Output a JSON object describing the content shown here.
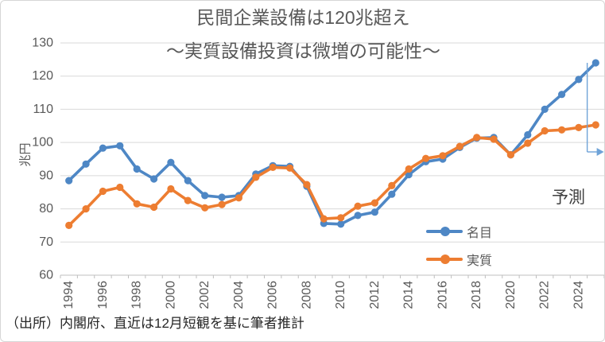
{
  "title": {
    "line1": "民間企業設備は120兆超え",
    "line2": "～実質設備投資は微増の可能性～"
  },
  "source_note": "（出所）内閣府、直近は12月短観を基に筆者推計",
  "forecast_label": "予測",
  "y_axis": {
    "unit_label": "兆円",
    "min": 60,
    "max": 130,
    "step": 10,
    "ticks": [
      60,
      70,
      80,
      90,
      100,
      110,
      120,
      130
    ]
  },
  "x_axis": {
    "label_interval": 2,
    "labels": [
      "1994",
      "1996",
      "1998",
      "2000",
      "2002",
      "2004",
      "2006",
      "2008",
      "2010",
      "2012",
      "2014",
      "2016",
      "2018",
      "2020",
      "2022",
      "2024"
    ]
  },
  "colors": {
    "nominal_blue": "#4E87C5",
    "real_orange": "#ED7D31",
    "forecast_arrow": "#6FA3D8",
    "gridline": "#D9D9D9",
    "axis": "#BFBFBF",
    "tick_text": "#595959",
    "title_text": "#595959"
  },
  "chart_data": {
    "type": "line",
    "title": "民間企業設備は120兆超え ～実質設備投資は微増の可能性～",
    "ylabel": "兆円",
    "ylim": [
      60,
      130
    ],
    "grid": true,
    "legend_position": "inside-right-bottom",
    "x": [
      1994,
      1995,
      1996,
      1997,
      1998,
      1999,
      2000,
      2001,
      2002,
      2003,
      2004,
      2005,
      2006,
      2007,
      2008,
      2009,
      2010,
      2011,
      2012,
      2013,
      2014,
      2015,
      2016,
      2017,
      2018,
      2019,
      2020,
      2021,
      2022,
      2023,
      2024,
      2025
    ],
    "series": [
      {
        "id": "nominal",
        "name": "名目",
        "color": "#4E87C5",
        "values": [
          88.5,
          93.5,
          98.3,
          99,
          92,
          89,
          94,
          88.5,
          84,
          83.5,
          84,
          90.5,
          93,
          92.8,
          86.8,
          75.6,
          75.4,
          78,
          79,
          84.4,
          90.3,
          94.2,
          95,
          98.5,
          101.3,
          101.5,
          96.3,
          102.3,
          110,
          114.5,
          119,
          124
        ]
      },
      {
        "id": "real",
        "name": "実質",
        "color": "#ED7D31",
        "values": [
          75,
          80,
          85.3,
          86.5,
          81.5,
          80.5,
          86,
          82.5,
          80.3,
          81.3,
          83.3,
          89.5,
          92.5,
          92.3,
          87.3,
          77,
          77.3,
          80.8,
          81.8,
          87,
          92,
          95.2,
          96,
          98.8,
          101.5,
          101,
          96.3,
          99.8,
          103.5,
          103.8,
          104.5,
          105.3
        ]
      }
    ],
    "annotations": {
      "forecast_text": "予測",
      "forecast_span_years": [
        2024,
        2025
      ]
    }
  }
}
